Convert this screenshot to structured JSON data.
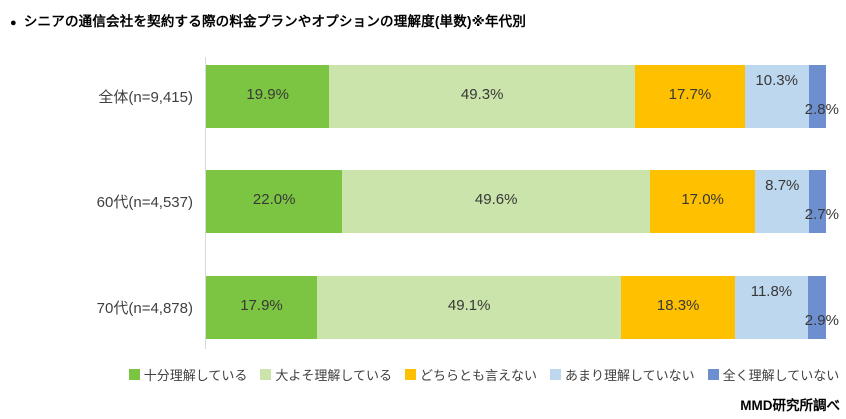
{
  "title": {
    "bullet": "●",
    "text": "シニアの通信会社を契約する際の料金プランやオプションの理解度(単数)※年代別"
  },
  "source": "MMD研究所調べ",
  "colors": {
    "understand_fully": "#7cc543",
    "understand_mostly": "#cbe4ab",
    "neither": "#ffc000",
    "not_really": "#bdd7ee",
    "not_at_all": "#6d8fd0",
    "axis_line": "#d9d9d9"
  },
  "chart_data": {
    "type": "bar",
    "stacked": true,
    "orientation": "horizontal",
    "unit": "%",
    "xlim": [
      0,
      100
    ],
    "grid": false,
    "legend_position": "bottom",
    "categories": [
      "全体(n=9,415)",
      "60代(n=4,537)",
      "70代(n=4,878)"
    ],
    "series": [
      {
        "name": "十分理解している",
        "color": "#7cc543",
        "values": [
          19.9,
          22.0,
          17.9
        ]
      },
      {
        "name": "大よそ理解している",
        "color": "#cbe4ab",
        "values": [
          49.3,
          49.6,
          49.1
        ]
      },
      {
        "name": "どちらとも言えない",
        "color": "#ffc000",
        "values": [
          17.7,
          17.0,
          18.3
        ]
      },
      {
        "name": "あまり理解していない",
        "color": "#bdd7ee",
        "values": [
          10.3,
          8.7,
          11.8
        ]
      },
      {
        "name": "全く理解していない",
        "color": "#6d8fd0",
        "values": [
          2.8,
          2.7,
          2.9
        ]
      }
    ],
    "value_labels": [
      [
        "19.9%",
        "49.3%",
        "17.7%",
        "10.3%",
        "2.8%"
      ],
      [
        "22.0%",
        "49.6%",
        "17.0%",
        "8.7%",
        "2.7%"
      ],
      [
        "17.9%",
        "49.1%",
        "18.3%",
        "11.8%",
        "2.9%"
      ]
    ]
  }
}
